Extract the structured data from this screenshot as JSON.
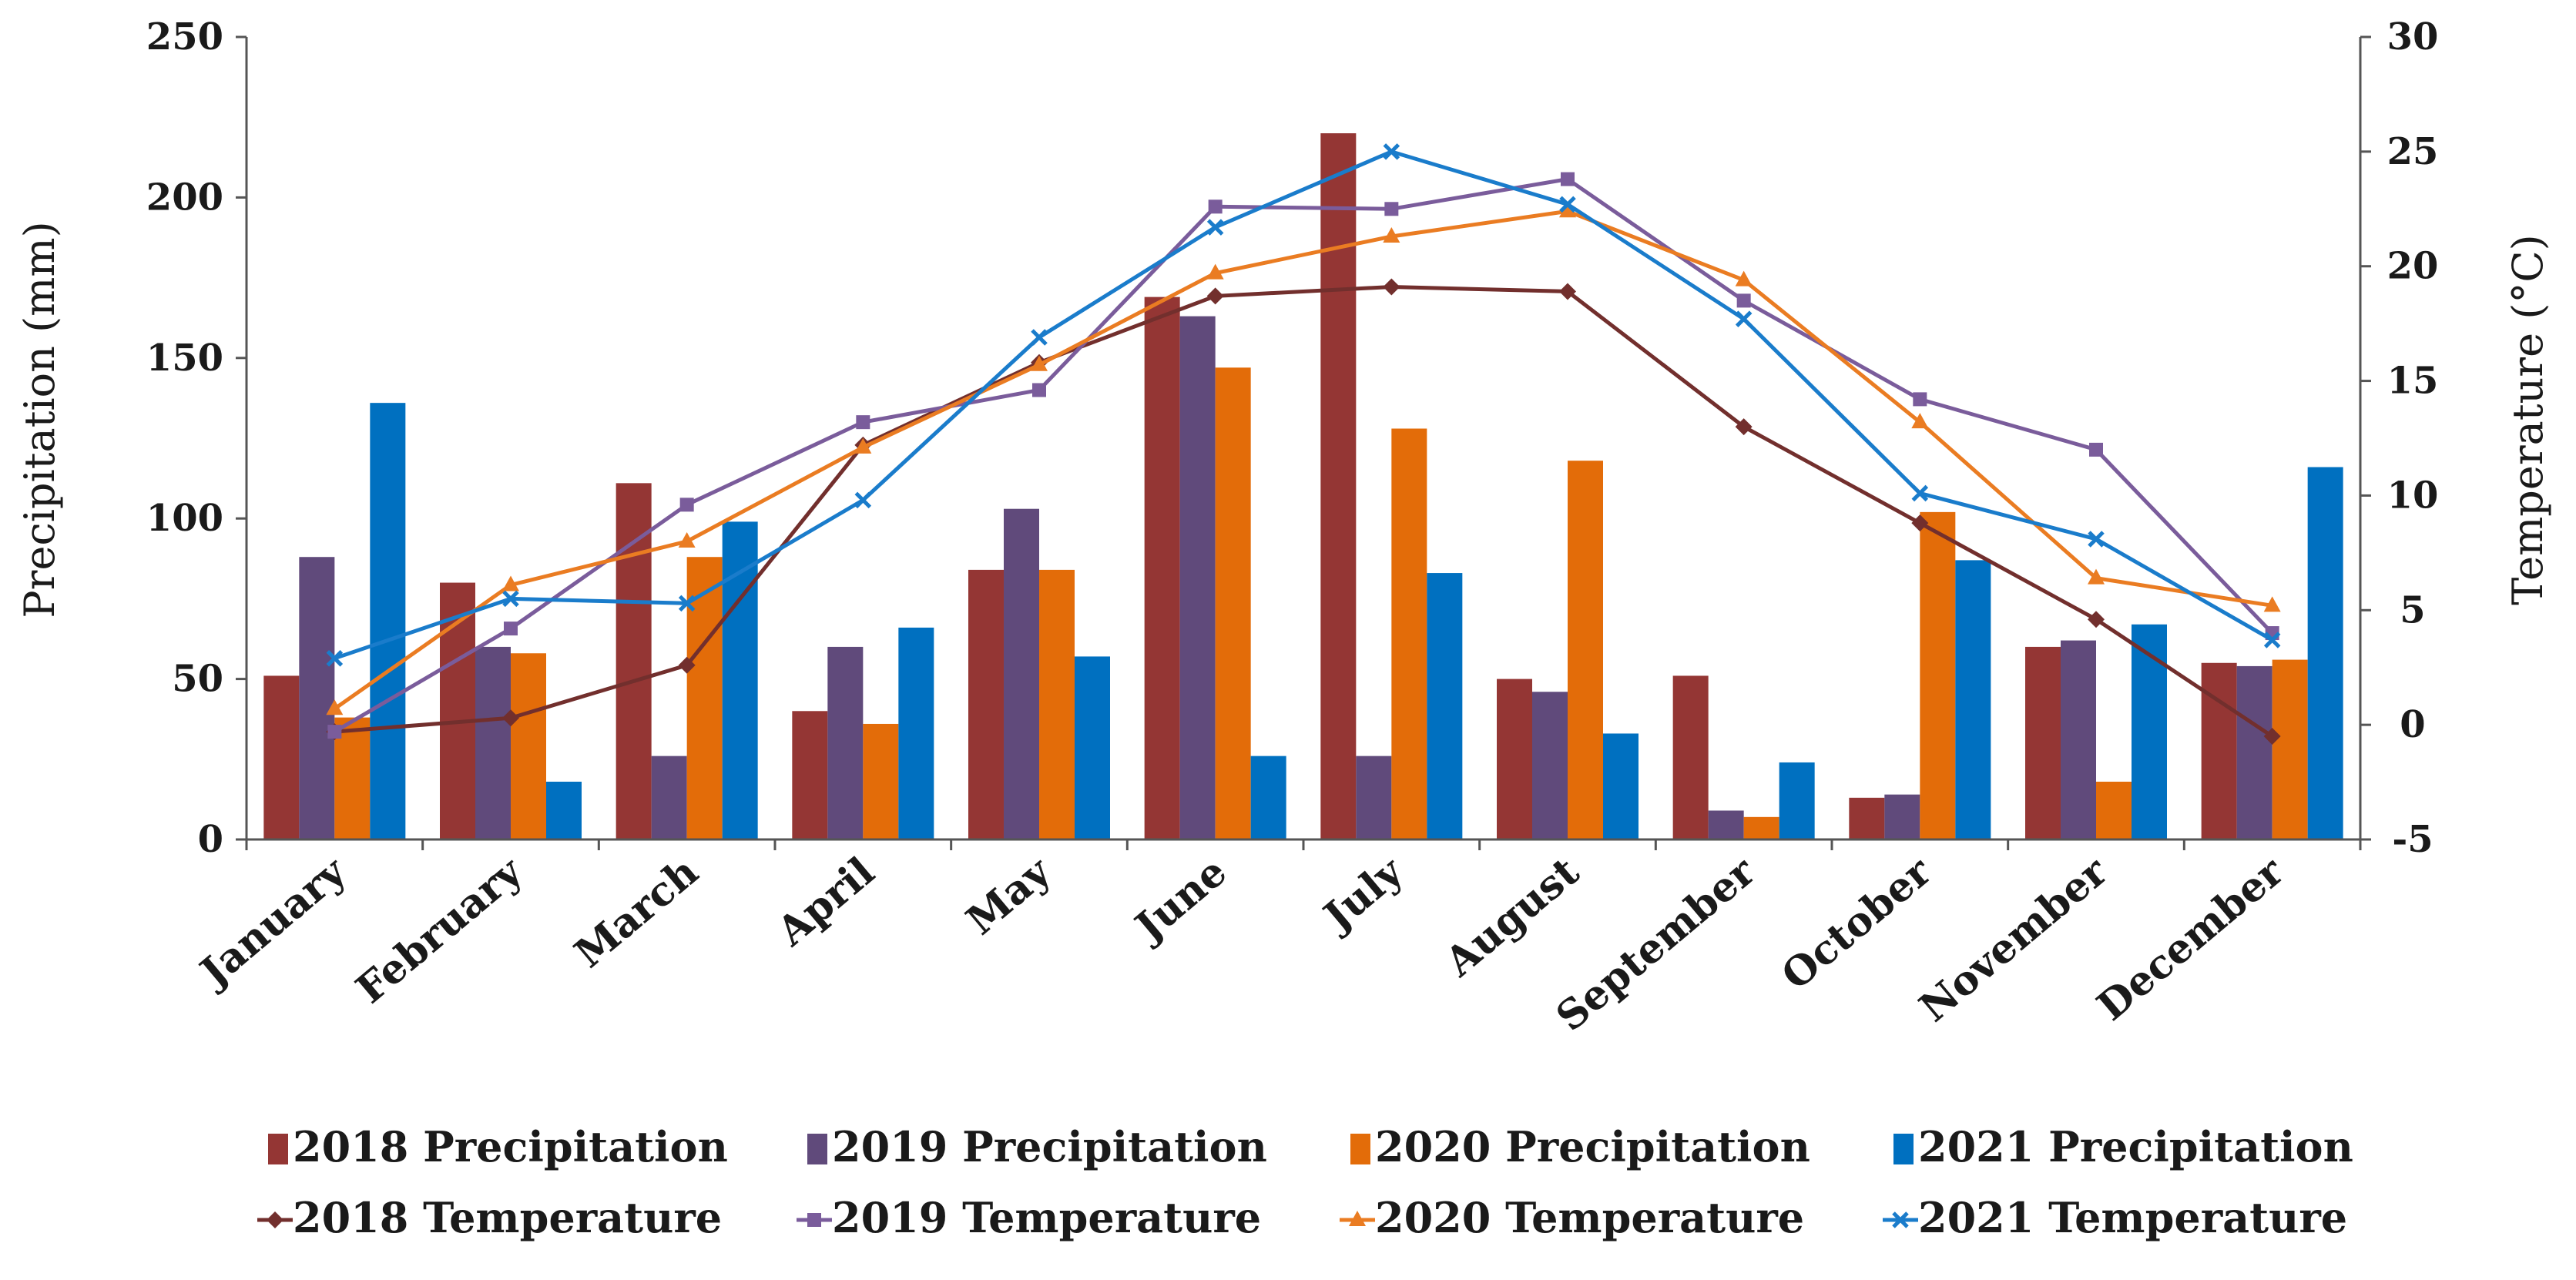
{
  "chart_data": {
    "type": "bar",
    "categories": [
      "January",
      "February",
      "March",
      "April",
      "May",
      "June",
      "July",
      "August",
      "September",
      "October",
      "November",
      "December"
    ],
    "series": [
      {
        "name": "2018 Precipitation",
        "type": "bar",
        "axis": "left",
        "color": "#943634",
        "values": [
          51,
          80,
          111,
          40,
          84,
          169,
          220,
          50,
          51,
          13,
          60,
          55
        ]
      },
      {
        "name": "2019 Precipitation",
        "type": "bar",
        "axis": "left",
        "color": "#604a7b",
        "values": [
          88,
          60,
          26,
          60,
          103,
          163,
          26,
          46,
          9,
          14,
          62,
          54
        ]
      },
      {
        "name": "2020 Precipitation",
        "type": "bar",
        "axis": "left",
        "color": "#e36c09",
        "values": [
          38,
          58,
          88,
          36,
          84,
          147,
          128,
          118,
          7,
          102,
          18,
          56
        ]
      },
      {
        "name": "2021 Precipitation",
        "type": "bar",
        "axis": "left",
        "color": "#0070c0",
        "values": [
          136,
          18,
          99,
          66,
          57,
          26,
          83,
          33,
          24,
          87,
          67,
          116
        ]
      },
      {
        "name": "2018 Temperature",
        "type": "line",
        "axis": "right",
        "color": "#722f2d",
        "marker": "diamond",
        "values": [
          -0.3,
          0.3,
          2.6,
          12.2,
          15.8,
          18.7,
          19.1,
          18.9,
          13.0,
          8.8,
          4.6,
          -0.5
        ]
      },
      {
        "name": "2019 Temperature",
        "type": "line",
        "axis": "right",
        "color": "#7a5c9b",
        "marker": "square",
        "values": [
          -0.3,
          4.2,
          9.6,
          13.2,
          14.6,
          22.6,
          22.5,
          23.8,
          18.5,
          14.2,
          12.0,
          4.0
        ]
      },
      {
        "name": "2020 Temperature",
        "type": "line",
        "axis": "right",
        "color": "#ea7c22",
        "marker": "triangle",
        "values": [
          0.7,
          6.1,
          8.0,
          12.1,
          15.7,
          19.7,
          21.3,
          22.4,
          19.4,
          13.2,
          6.4,
          5.2
        ]
      },
      {
        "name": "2021 Temperature",
        "type": "line",
        "axis": "right",
        "color": "#1a7ccb",
        "marker": "x",
        "values": [
          2.9,
          5.5,
          5.3,
          9.8,
          16.9,
          21.7,
          25.0,
          22.7,
          17.7,
          10.1,
          8.1,
          3.7
        ]
      }
    ],
    "ylabel": "Precipitation (mm)",
    "ylabel_right": "Temperature (°C)",
    "ylim": [
      0,
      250
    ],
    "ylim_right": [
      -5,
      30
    ],
    "yticks": [
      "0",
      "50",
      "100",
      "150",
      "200",
      "250"
    ],
    "yticks_right": [
      "-5",
      "0",
      "5",
      "10",
      "15",
      "20",
      "25",
      "30"
    ],
    "grid": false,
    "legend_position": "bottom"
  }
}
